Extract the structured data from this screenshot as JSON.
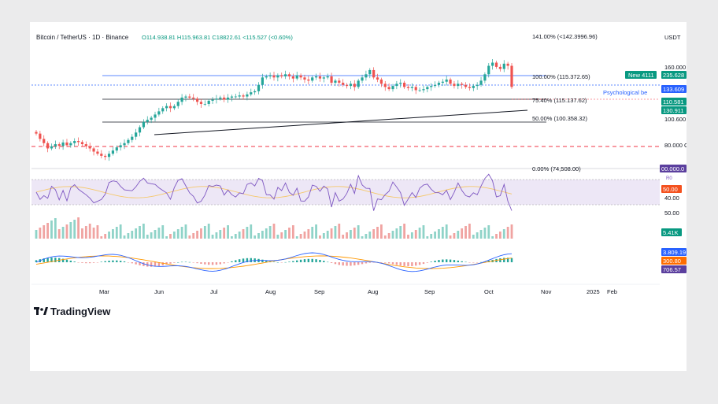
{
  "header": {
    "symbol": "Bitcoin / TetherUS · 1D · Binance",
    "ohlc": "O114.938.81 H115.963.81 C18822.61 <115.527 (<0.60%)"
  },
  "currency": "USDT",
  "logo": {
    "text": "TradingView"
  },
  "fib_labels": {
    "f141": "141.00% (<142.3996.96)",
    "f100": "100.00% (115.372.65)",
    "f754": "75.40% (115.137.62)",
    "f50": "50.00% (100.358.32)",
    "f0": "0.00% (74,508.00)"
  },
  "annotation": {
    "psych": "Psychological be"
  },
  "price_axis": [
    "160.000",
    "100.600",
    "80.000 C",
    "40.00",
    "50.00"
  ],
  "badges": {
    "new": "New 4111",
    "new_val": "235.628",
    "p1": "133.609",
    "p2": "110.581",
    "p3": "130.911",
    "rsi_top": "00.000.0",
    "rsi_small": "R0",
    "rsi_val": "50.00",
    "vol": "5.41K",
    "macd1": "3.809.19",
    "macd2": "300.80",
    "macd3": "706.57"
  },
  "time_axis": [
    "Mar",
    "Jun",
    "Jul",
    "Aug",
    "Sep",
    "Aug",
    "Sep",
    "Oct",
    "Nov",
    "2025",
    "Feb"
  ],
  "colors": {
    "up": "#26a69a",
    "down": "#ef5350",
    "rsi": "#7e57c2",
    "rsi_ma": "#f5c86b",
    "rsi_band": "#ede7f6",
    "macd": "#2962ff",
    "signal": "#ff9800",
    "fib_blue": "#2962ff",
    "red_dashed": "#f23645",
    "purple_badge": "#5b3f9e"
  },
  "chart_data": {
    "type": "candlestick",
    "series": [
      {
        "name": "Bitcoin / TetherUS",
        "close_approx": [
          91000,
          88500,
          86500,
          84000,
          85000,
          86000,
          85200,
          86800,
          85500,
          86500,
          87500,
          87000,
          86000,
          85000,
          84000,
          82500,
          81500,
          80500,
          80000,
          81500,
          83000,
          84500,
          85500,
          86500,
          88000,
          89500,
          91500,
          94000,
          96500,
          97500,
          98500,
          100000,
          101500,
          103000,
          104000,
          103000,
          104000,
          106000,
          108000,
          108500,
          108000,
          107500,
          106000,
          105000,
          105000,
          106500,
          107000,
          107500,
          108000,
          107000,
          108000,
          108500,
          108500,
          109000,
          108500,
          109500,
          110500,
          111000,
          114000,
          117500,
          118000,
          118500,
          117500,
          118500,
          118000,
          119000,
          118000,
          117000,
          118500,
          117500,
          116500,
          116000,
          117500,
          118000,
          117000,
          117500,
          118000,
          115000,
          116000,
          115000,
          114000,
          113500,
          114500,
          113000,
          116000,
          117500,
          119000,
          121000,
          117500,
          116500,
          114500,
          113000,
          112000,
          113500,
          114500,
          115000,
          113000,
          112500,
          113000,
          111500,
          111500,
          112000,
          113000,
          113500,
          114000,
          115000,
          115500,
          116500,
          114500,
          113500,
          114500,
          114000,
          113000,
          112500,
          113500,
          114000,
          116000,
          119000,
          123000,
          124500,
          122500,
          121500,
          124000,
          123000,
          113000
        ],
        "moving_avg_visible": true
      }
    ],
    "indicators": [
      "RSI",
      "Volume",
      "MACD"
    ],
    "fib_levels": [
      {
        "label": "141.00%",
        "value": 142399.96
      },
      {
        "label": "100.00%",
        "value": 115372.65
      },
      {
        "label": "75.40%",
        "value": 115137.62
      },
      {
        "label": "50.00%",
        "value": 100358.32
      },
      {
        "label": "0.00%",
        "value": 74508.0
      }
    ],
    "xlabel": "",
    "ylabel": ""
  }
}
